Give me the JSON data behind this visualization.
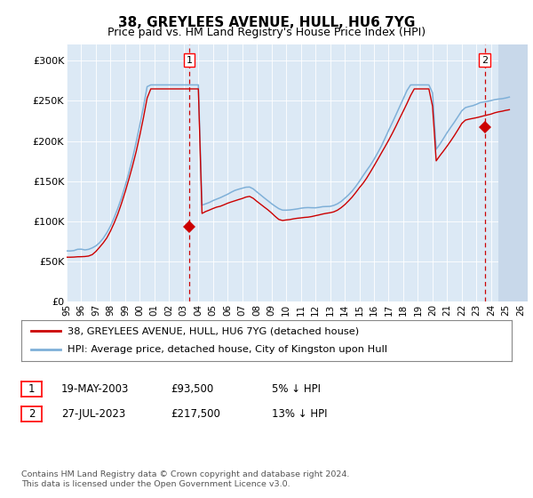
{
  "title": "38, GREYLEES AVENUE, HULL, HU6 7YG",
  "subtitle": "Price paid vs. HM Land Registry's House Price Index (HPI)",
  "title_fontsize": 11,
  "subtitle_fontsize": 9,
  "ylim": [
    0,
    320000
  ],
  "xlim_start": 1995.0,
  "xlim_end": 2026.5,
  "yticks": [
    0,
    50000,
    100000,
    150000,
    200000,
    250000,
    300000
  ],
  "ytick_labels": [
    "£0",
    "£50K",
    "£100K",
    "£150K",
    "£200K",
    "£250K",
    "£300K"
  ],
  "xtick_years": [
    1995,
    1996,
    1997,
    1998,
    1999,
    2000,
    2001,
    2002,
    2003,
    2004,
    2005,
    2006,
    2007,
    2008,
    2009,
    2010,
    2011,
    2012,
    2013,
    2014,
    2015,
    2016,
    2017,
    2018,
    2019,
    2020,
    2021,
    2022,
    2023,
    2024,
    2025,
    2026
  ],
  "bg_color": "#dce9f5",
  "hatch_color": "#c8d8ea",
  "line_red": "#cc0000",
  "line_blue": "#7fb0d8",
  "sale1_year": 2003.38,
  "sale1_price": 93500,
  "sale2_year": 2023.57,
  "sale2_price": 217500,
  "legend_red": "38, GREYLEES AVENUE, HULL, HU6 7YG (detached house)",
  "legend_blue": "HPI: Average price, detached house, City of Kingston upon Hull",
  "table_row1": [
    "1",
    "19-MAY-2003",
    "£93,500",
    "5% ↓ HPI"
  ],
  "table_row2": [
    "2",
    "27-JUL-2023",
    "£217,500",
    "13% ↓ HPI"
  ],
  "footer": "Contains HM Land Registry data © Crown copyright and database right 2024.\nThis data is licensed under the Open Government Licence v3.0."
}
